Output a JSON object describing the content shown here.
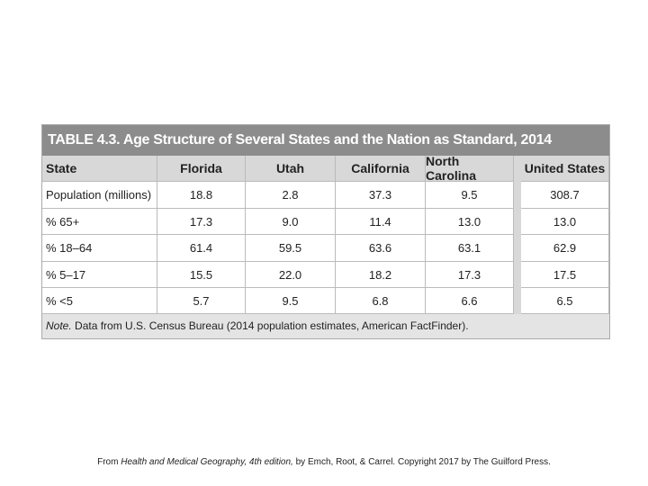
{
  "table": {
    "title": "TABLE 4.3.  Age Structure of Several States and the Nation as Standard, 2014",
    "header": [
      "State",
      "Florida",
      "Utah",
      "California",
      "North Carolina",
      "United States"
    ],
    "rows": [
      [
        "Population (millions)",
        "18.8",
        "2.8",
        "37.3",
        "9.5",
        "308.7"
      ],
      [
        "% 65+",
        "17.3",
        "9.0",
        "11.4",
        "13.0",
        "13.0"
      ],
      [
        "% 18–64",
        "61.4",
        "59.5",
        "63.6",
        "63.1",
        "62.9"
      ],
      [
        "% 5–17",
        "15.5",
        "22.0",
        "18.2",
        "17.3",
        "17.5"
      ],
      [
        "% <5",
        "5.7",
        "9.5",
        "6.8",
        "6.6",
        "6.5"
      ]
    ],
    "note": {
      "label": "Note.",
      "text": " Data from U.S. Census Bureau (2014 population estimates, American FactFinder)."
    }
  },
  "caption": {
    "prefix": "From ",
    "book": "Health and Medical Geography, 4th edition,",
    "suffix": " by Emch, Root, & Carrel. Copyright 2017 by The Guilford Press."
  }
}
